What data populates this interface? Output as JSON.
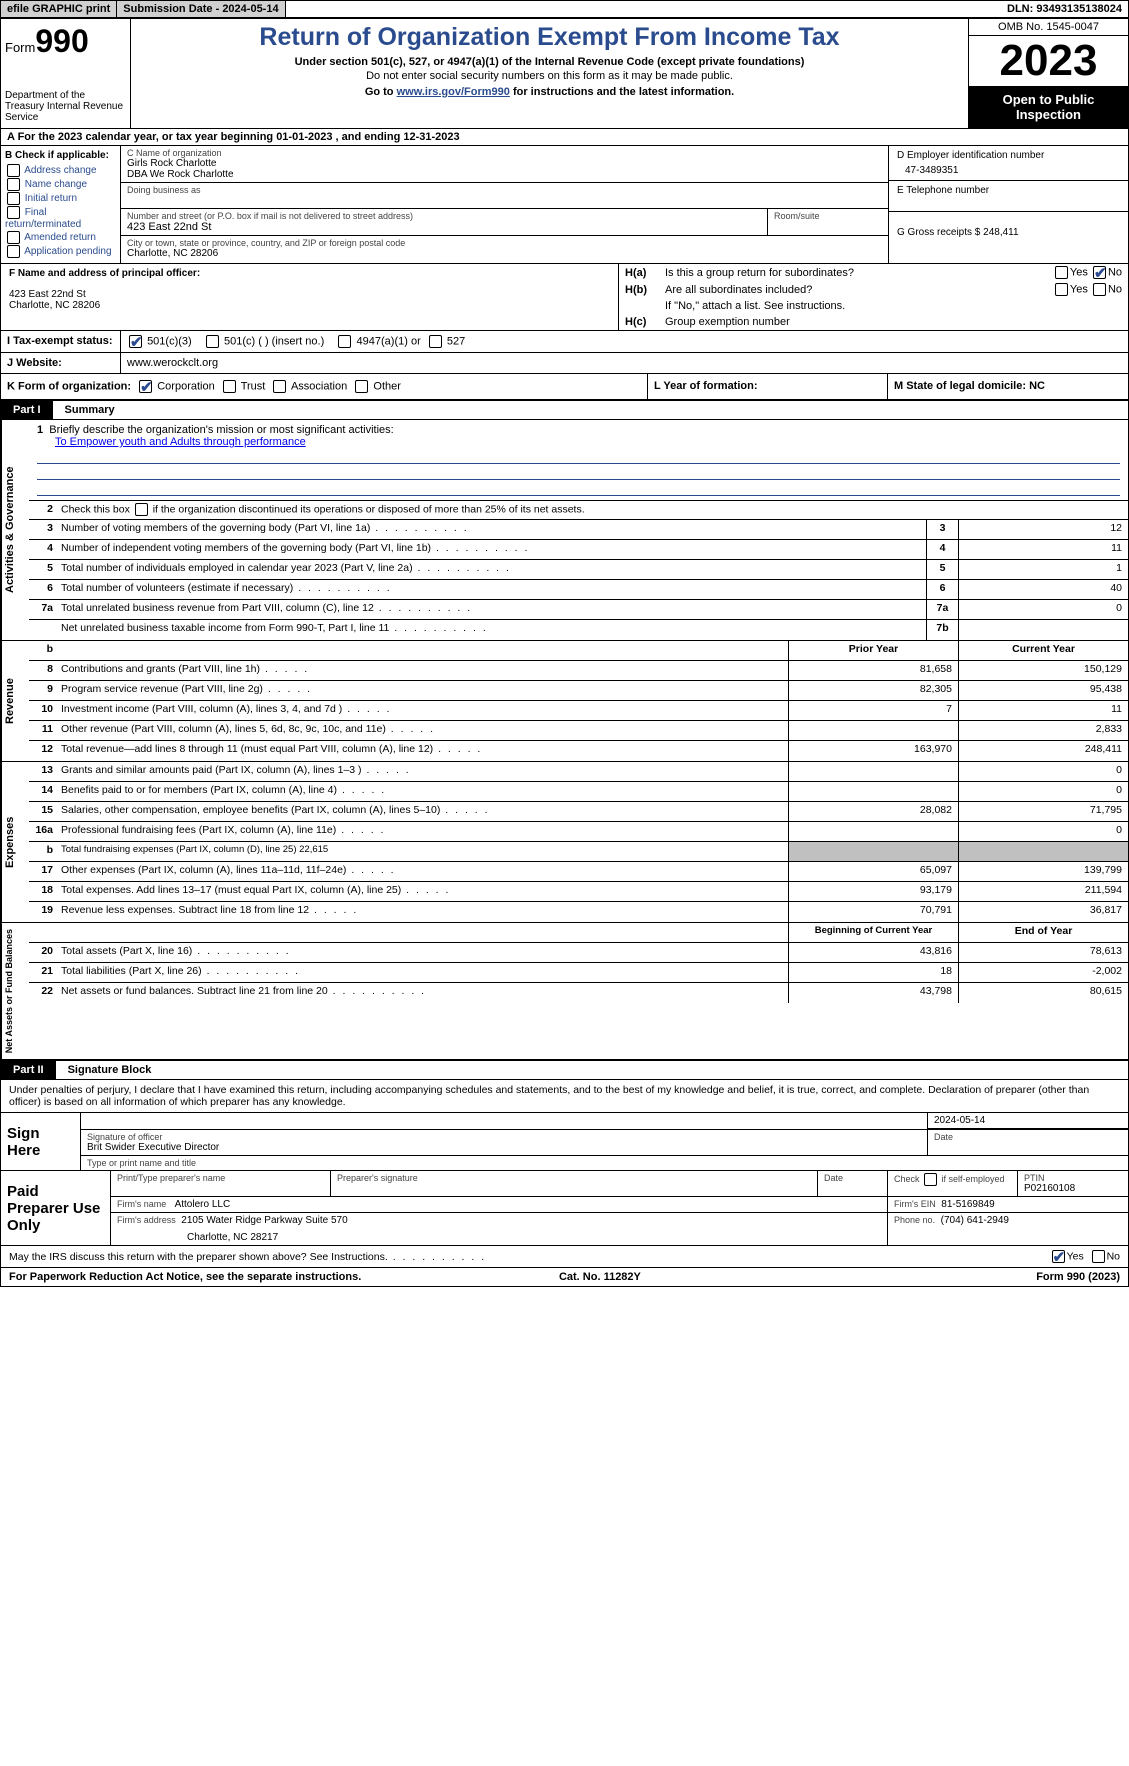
{
  "topbar": {
    "efile": "efile GRAPHIC print",
    "subdate_label": "Submission Date - 2024-05-14",
    "dln": "DLN: 93493135138024"
  },
  "header": {
    "form_label": "Form",
    "form_num": "990",
    "dept": "Department of the Treasury Internal Revenue Service",
    "title": "Return of Organization Exempt From Income Tax",
    "sub": "Under section 501(c), 527, or 4947(a)(1) of the Internal Revenue Code (except private foundations)",
    "note": "Do not enter social security numbers on this form as it may be made public.",
    "link_pre": "Go to ",
    "link_url": "www.irs.gov/Form990",
    "link_post": " for instructions and the latest information.",
    "omb": "OMB No. 1545-0047",
    "year": "2023",
    "inspect": "Open to Public Inspection"
  },
  "rowA": "A   For the 2023 calendar year, or tax year beginning 01-01-2023    , and ending 12-31-2023",
  "colB": {
    "hdr": "B Check if applicable:",
    "items": [
      "Address change",
      "Name change",
      "Initial return",
      "Final return/terminated",
      "Amended return",
      "Application pending"
    ]
  },
  "colC": {
    "name_lbl": "C Name of organization",
    "name1": "Girls Rock Charlotte",
    "name2": "DBA We Rock Charlotte",
    "dba_lbl": "Doing business as",
    "addr_lbl": "Number and street (or P.O. box if mail is not delivered to street address)",
    "room_lbl": "Room/suite",
    "addr": "423 East 22nd St",
    "city_lbl": "City or town, state or province, country, and ZIP or foreign postal code",
    "city": "Charlotte, NC  28206"
  },
  "colD": {
    "ein_lbl": "D Employer identification number",
    "ein": "47-3489351",
    "tel_lbl": "E Telephone number",
    "gross_lbl": "G Gross receipts $ 248,411"
  },
  "secF": {
    "lbl": "F  Name and address of principal officer:",
    "l1": "423 East 22nd St",
    "l2": "Charlotte, NC  28206"
  },
  "secH": {
    "ha_lbl": "H(a)",
    "ha_txt": "Is this a group return for subordinates?",
    "hb_lbl": "H(b)",
    "hb_txt": "Are all subordinates included?",
    "hb_note": "If \"No,\" attach a list. See instructions.",
    "hc_lbl": "H(c)",
    "hc_txt": "Group exemption number"
  },
  "rowI": {
    "lbl": "I   Tax-exempt status:",
    "o1": "501(c)(3)",
    "o2": "501(c) (  ) (insert no.)",
    "o3": "4947(a)(1) or",
    "o4": "527"
  },
  "rowJ": {
    "lbl": "J   Website:",
    "val": "www.werockclt.org"
  },
  "rowK": {
    "lbl": "K Form of organization:",
    "o1": "Corporation",
    "o2": "Trust",
    "o3": "Association",
    "o4": "Other"
  },
  "rowL": "L Year of formation:",
  "rowM": "M State of legal domicile: NC",
  "part1": {
    "num": "Part I",
    "title": "Summary"
  },
  "gov": {
    "label": "Activities & Governance",
    "l1": "Briefly describe the organization's mission or most significant activities:",
    "mission": "To Empower youth and Adults through performance",
    "l2": "Check this box        if the organization discontinued its operations or disposed of more than 25% of its net assets.",
    "rows": [
      {
        "n": "3",
        "d": "Number of voting members of the governing body (Part VI, line 1a)",
        "b": "3",
        "v": "12"
      },
      {
        "n": "4",
        "d": "Number of independent voting members of the governing body (Part VI, line 1b)",
        "b": "4",
        "v": "11"
      },
      {
        "n": "5",
        "d": "Total number of individuals employed in calendar year 2023 (Part V, line 2a)",
        "b": "5",
        "v": "1"
      },
      {
        "n": "6",
        "d": "Total number of volunteers (estimate if necessary)",
        "b": "6",
        "v": "40"
      },
      {
        "n": "7a",
        "d": "Total unrelated business revenue from Part VIII, column (C), line 12",
        "b": "7a",
        "v": "0"
      },
      {
        "n": "",
        "d": "Net unrelated business taxable income from Form 990-T, Part I, line 11",
        "b": "7b",
        "v": ""
      }
    ]
  },
  "rev": {
    "label": "Revenue",
    "hdr_prior": "Prior Year",
    "hdr_cur": "Current Year",
    "rows": [
      {
        "n": "8",
        "d": "Contributions and grants (Part VIII, line 1h)",
        "p": "81,658",
        "c": "150,129"
      },
      {
        "n": "9",
        "d": "Program service revenue (Part VIII, line 2g)",
        "p": "82,305",
        "c": "95,438"
      },
      {
        "n": "10",
        "d": "Investment income (Part VIII, column (A), lines 3, 4, and 7d )",
        "p": "7",
        "c": "11"
      },
      {
        "n": "11",
        "d": "Other revenue (Part VIII, column (A), lines 5, 6d, 8c, 9c, 10c, and 11e)",
        "p": "",
        "c": "2,833"
      },
      {
        "n": "12",
        "d": "Total revenue—add lines 8 through 11 (must equal Part VIII, column (A), line 12)",
        "p": "163,970",
        "c": "248,411"
      }
    ]
  },
  "exp": {
    "label": "Expenses",
    "rows": [
      {
        "n": "13",
        "d": "Grants and similar amounts paid (Part IX, column (A), lines 1–3 )",
        "p": "",
        "c": "0"
      },
      {
        "n": "14",
        "d": "Benefits paid to or for members (Part IX, column (A), line 4)",
        "p": "",
        "c": "0"
      },
      {
        "n": "15",
        "d": "Salaries, other compensation, employee benefits (Part IX, column (A), lines 5–10)",
        "p": "28,082",
        "c": "71,795"
      },
      {
        "n": "16a",
        "d": "Professional fundraising fees (Part IX, column (A), line 11e)",
        "p": "",
        "c": "0"
      },
      {
        "n": "b",
        "d": "Total fundraising expenses (Part IX, column (D), line 25) 22,615",
        "grey": true
      },
      {
        "n": "17",
        "d": "Other expenses (Part IX, column (A), lines 11a–11d, 11f–24e)",
        "p": "65,097",
        "c": "139,799"
      },
      {
        "n": "18",
        "d": "Total expenses. Add lines 13–17 (must equal Part IX, column (A), line 25)",
        "p": "93,179",
        "c": "211,594"
      },
      {
        "n": "19",
        "d": "Revenue less expenses. Subtract line 18 from line 12",
        "p": "70,791",
        "c": "36,817"
      }
    ]
  },
  "net": {
    "label": "Net Assets or Fund Balances",
    "hdr_beg": "Beginning of Current Year",
    "hdr_end": "End of Year",
    "rows": [
      {
        "n": "20",
        "d": "Total assets (Part X, line 16)",
        "p": "43,816",
        "c": "78,613"
      },
      {
        "n": "21",
        "d": "Total liabilities (Part X, line 26)",
        "p": "18",
        "c": "-2,002"
      },
      {
        "n": "22",
        "d": "Net assets or fund balances. Subtract line 21 from line 20",
        "p": "43,798",
        "c": "80,615"
      }
    ]
  },
  "part2": {
    "num": "Part II",
    "title": "Signature Block"
  },
  "sig": {
    "declare": "Under penalties of perjury, I declare that I have examined this return, including accompanying schedules and statements, and to the best of my knowledge and belief, it is true, correct, and complete. Declaration of preparer (other than officer) is based on all information of which preparer has any knowledge.",
    "sign_here": "Sign Here",
    "sig_date": "2024-05-14",
    "sig_off_lbl": "Signature of officer",
    "date_lbl": "Date",
    "officer": "Brit Swider  Executive Director",
    "type_lbl": "Type or print name and title",
    "paid": "Paid Preparer Use Only",
    "prep_name_lbl": "Print/Type preparer's name",
    "prep_sig_lbl": "Preparer's signature",
    "check_lbl": "Check         if self-employed",
    "ptin_lbl": "PTIN",
    "ptin": "P02160108",
    "firm_name_lbl": "Firm's name",
    "firm_name": "Attolero LLC",
    "firm_ein_lbl": "Firm's EIN",
    "firm_ein": "81-5169849",
    "firm_addr_lbl": "Firm's address",
    "firm_addr1": "2105 Water Ridge Parkway Suite 570",
    "firm_addr2": "Charlotte, NC  28217",
    "phone_lbl": "Phone no.",
    "phone": "(704) 641-2949",
    "discuss": "May the IRS discuss this return with the preparer shown above? See Instructions."
  },
  "foot": {
    "l": "For Paperwork Reduction Act Notice, see the separate instructions.",
    "m": "Cat. No. 11282Y",
    "r": "Form 990 (2023)"
  },
  "yes": "Yes",
  "no": "No"
}
